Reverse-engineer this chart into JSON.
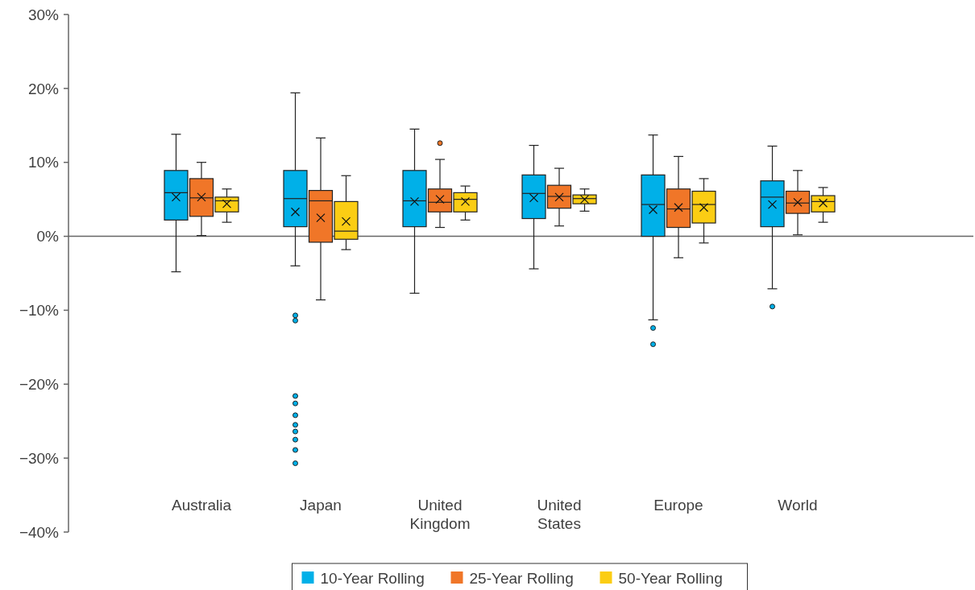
{
  "chart_data": {
    "type": "box",
    "categories": [
      "Australia",
      "Japan",
      "United Kingdom",
      "United States",
      "Europe",
      "World"
    ],
    "ylim": [
      -40,
      30
    ],
    "yticks": [
      {
        "value": -40,
        "label": "−40%"
      },
      {
        "value": -30,
        "label": "−30%"
      },
      {
        "value": -20,
        "label": "−20%"
      },
      {
        "value": -10,
        "label": "−10%"
      },
      {
        "value": 0,
        "label": "0%"
      },
      {
        "value": 10,
        "label": "10%"
      },
      {
        "value": 20,
        "label": "20%"
      },
      {
        "value": 30,
        "label": "30%"
      }
    ],
    "legend": "bottom",
    "series": [
      {
        "name": "10-Year Rolling",
        "color": "#00b0e8",
        "boxes": [
          {
            "low": -4.8,
            "q1": 2.2,
            "median": 5.9,
            "q3": 8.9,
            "high": 13.8,
            "mean": 5.3
          },
          {
            "low": -4.0,
            "q1": 1.3,
            "median": 5.1,
            "q3": 8.9,
            "high": 19.4,
            "mean": 3.3,
            "outliers": [
              -10.7,
              -11.4,
              -21.6,
              -22.6,
              -24.2,
              -25.5,
              -26.4,
              -27.5,
              -28.9,
              -30.7
            ]
          },
          {
            "low": -7.7,
            "q1": 1.3,
            "median": 4.8,
            "q3": 8.9,
            "high": 14.5,
            "mean": 4.7
          },
          {
            "low": -4.4,
            "q1": 2.4,
            "median": 5.8,
            "q3": 8.3,
            "high": 12.3,
            "mean": 5.2
          },
          {
            "low": -11.3,
            "q1": 0.0,
            "median": 4.3,
            "q3": 8.3,
            "high": 13.7,
            "mean": 3.6,
            "outliers": [
              -12.4,
              -14.6
            ]
          },
          {
            "low": -7.1,
            "q1": 1.3,
            "median": 5.3,
            "q3": 7.5,
            "high": 12.2,
            "mean": 4.3,
            "outliers": [
              -9.5
            ]
          }
        ]
      },
      {
        "name": "25-Year Rolling",
        "color": "#f07628",
        "boxes": [
          {
            "low": 0.1,
            "q1": 2.7,
            "median": 5.2,
            "q3": 7.8,
            "high": 10.0,
            "mean": 5.3
          },
          {
            "low": -8.6,
            "q1": -0.8,
            "median": 4.8,
            "q3": 6.2,
            "high": 13.3,
            "mean": 2.5
          },
          {
            "low": 1.2,
            "q1": 3.3,
            "median": 4.6,
            "q3": 6.4,
            "high": 10.4,
            "mean": 5.0,
            "outliers": [
              12.6
            ]
          },
          {
            "low": 1.4,
            "q1": 3.8,
            "median": 5.4,
            "q3": 6.9,
            "high": 9.2,
            "mean": 5.3
          },
          {
            "low": -2.9,
            "q1": 1.2,
            "median": 3.7,
            "q3": 6.4,
            "high": 10.8,
            "mean": 3.9
          },
          {
            "low": 0.2,
            "q1": 3.1,
            "median": 4.5,
            "q3": 6.1,
            "high": 8.9,
            "mean": 4.6
          }
        ]
      },
      {
        "name": "50-Year Rolling",
        "color": "#fbcd14",
        "boxes": [
          {
            "low": 1.9,
            "q1": 3.3,
            "median": 4.8,
            "q3": 5.3,
            "high": 6.4,
            "mean": 4.4
          },
          {
            "low": -1.8,
            "q1": -0.4,
            "median": 0.7,
            "q3": 4.7,
            "high": 8.2,
            "mean": 2.0
          },
          {
            "low": 2.2,
            "q1": 3.3,
            "median": 5.0,
            "q3": 5.9,
            "high": 6.8,
            "mean": 4.7
          },
          {
            "low": 3.4,
            "q1": 4.4,
            "median": 5.1,
            "q3": 5.6,
            "high": 6.4,
            "mean": 5.0
          },
          {
            "low": -0.9,
            "q1": 1.8,
            "median": 4.3,
            "q3": 6.1,
            "high": 7.8,
            "mean": 3.9
          },
          {
            "low": 1.9,
            "q1": 3.3,
            "median": 4.7,
            "q3": 5.5,
            "high": 6.6,
            "mean": 4.5
          }
        ]
      }
    ]
  }
}
